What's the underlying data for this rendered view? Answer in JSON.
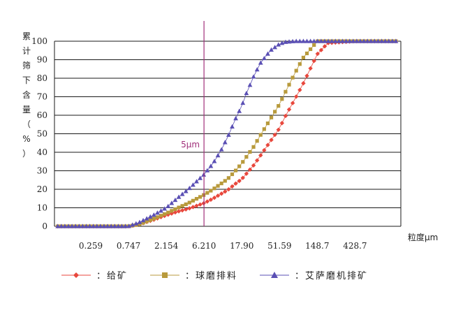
{
  "chart_data": {
    "type": "line",
    "ylabel": "累计筛下含量（%）",
    "xlabel": "粒度μm",
    "x_tick_labels": [
      "0.259",
      "0.747",
      "2.154",
      "6.210",
      "17.90",
      "51.59",
      "148.7",
      "428.7"
    ],
    "y_ticks": [
      0,
      10,
      20,
      30,
      40,
      50,
      60,
      70,
      80,
      90,
      100
    ],
    "ylim": [
      0,
      100
    ],
    "x_scale": "log",
    "grid": "horizontal",
    "annotation": {
      "x": 6.2,
      "label": "5μm",
      "color": "#a0307a"
    },
    "x": [
      0.1,
      0.2,
      0.3,
      0.5,
      0.747,
      1.0,
      1.5,
      2.154,
      3.0,
      4.0,
      6.21,
      8.0,
      10.0,
      12.0,
      15.0,
      17.9,
      20.0,
      25.0,
      30.0,
      40.0,
      51.59,
      60.0,
      80.0,
      100.0,
      148.7,
      200.0,
      428.7,
      1000.0
    ],
    "series": [
      {
        "name": "给矿",
        "color": "#e8473c",
        "marker": "diamond",
        "values": [
          0,
          0,
          0,
          0,
          0,
          1,
          3.5,
          6,
          8,
          9.5,
          12.5,
          15,
          17.5,
          19.5,
          23,
          25.5,
          28,
          33,
          38,
          46,
          53,
          59,
          69,
          77,
          93,
          99,
          100,
          100
        ]
      },
      {
        "name": "球磨排料",
        "color": "#b89a3c",
        "marker": "square",
        "values": [
          0,
          0,
          0,
          0,
          0,
          1,
          4,
          7,
          10,
          12.5,
          17,
          20,
          23,
          25.5,
          30,
          34,
          37,
          43,
          49,
          58,
          66,
          72,
          83,
          91,
          100,
          100,
          100,
          100
        ]
      },
      {
        "name": "艾萨磨机排矿",
        "color": "#5a4fb4",
        "marker": "triangle",
        "values": [
          0,
          0,
          0,
          0,
          0,
          2,
          6,
          10,
          15.5,
          20,
          28,
          34,
          41,
          48,
          58,
          65,
          71,
          81,
          88,
          95,
          98.5,
          99.5,
          100,
          100,
          100,
          100,
          100,
          100
        ]
      }
    ],
    "legend": [
      {
        "label": "：给矿"
      },
      {
        "label": "：球磨排料"
      },
      {
        "label": "：艾萨磨机排矿"
      }
    ]
  }
}
